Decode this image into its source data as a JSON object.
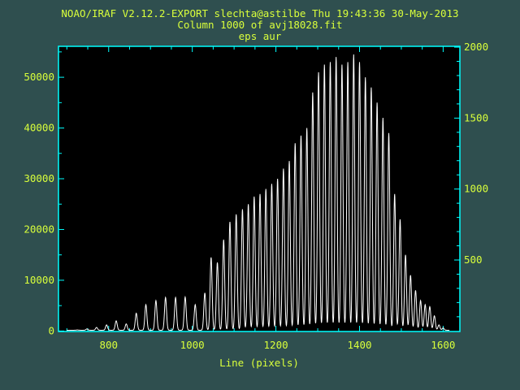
{
  "header": {
    "line1": "NOAO/IRAF V2.12.2-EXPORT slechta@astilbe Thu 19:43:36 30-May-2013",
    "line2": "Column 1000 of avj18028.fit",
    "line3": "eps aur"
  },
  "colors": {
    "background": "#2f4f4f",
    "plot_background": "#000000",
    "axis": "#00ffff",
    "text": "#d9ff3b",
    "trace": "#ffffff"
  },
  "chart_data": {
    "type": "line",
    "title": "",
    "xlabel": "Line (pixels)",
    "ylabel": "",
    "xlim": [
      680,
      1640
    ],
    "ylim": [
      -100,
      56100
    ],
    "y2lim": [
      -4,
      2006
    ],
    "x_ticks": [
      800,
      1000,
      1200,
      1400,
      1600
    ],
    "y_ticks": [
      0,
      10000,
      20000,
      30000,
      40000,
      50000
    ],
    "y2_ticks": [
      500,
      1000,
      1500,
      2000
    ],
    "grid": false,
    "peaks": {
      "x": [
        725,
        748,
        771,
        795,
        818,
        842,
        866,
        889,
        913,
        936,
        960,
        983,
        1007,
        1030,
        1045,
        1060,
        1075,
        1090,
        1105,
        1120,
        1134,
        1148,
        1162,
        1176,
        1190,
        1204,
        1218,
        1232,
        1246,
        1260,
        1274,
        1288,
        1302,
        1316,
        1330,
        1344,
        1358,
        1372,
        1386,
        1400,
        1414,
        1428,
        1442,
        1456,
        1470,
        1484,
        1497,
        1510,
        1522,
        1534,
        1546,
        1557,
        1568,
        1579,
        1590,
        1600
      ],
      "y": [
        200,
        400,
        700,
        1200,
        2000,
        1400,
        3500,
        5200,
        6000,
        6600,
        6600,
        6700,
        5200,
        7500,
        14500,
        13500,
        18000,
        21500,
        23000,
        24000,
        25000,
        26500,
        27000,
        28000,
        29000,
        30000,
        32000,
        33500,
        37000,
        38500,
        40000,
        47000,
        51000,
        52500,
        53000,
        54000,
        52500,
        53000,
        54500,
        53000,
        50000,
        48000,
        45000,
        42000,
        39000,
        27000,
        22000,
        15000,
        11000,
        8000,
        6000,
        5200,
        4800,
        3000,
        1200,
        600
      ]
    }
  }
}
